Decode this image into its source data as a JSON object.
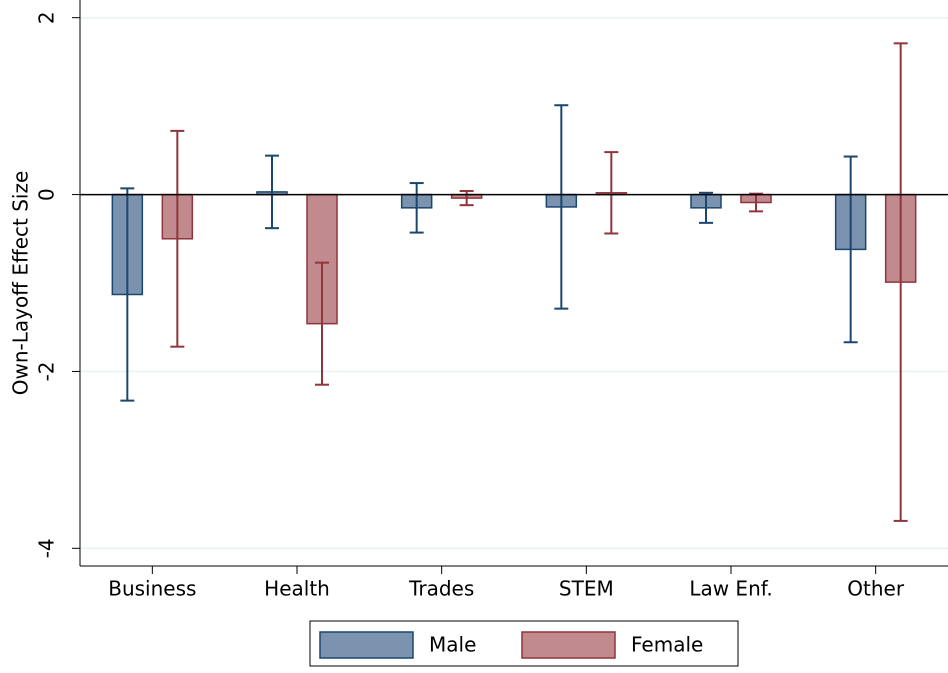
{
  "chart_data": {
    "type": "bar",
    "y_label": "Own-Layoff Effect Size",
    "categories": [
      "Business",
      "Health",
      "Trades",
      "STEM",
      "Law Enf.",
      "Other"
    ],
    "series": [
      {
        "name": "Male",
        "color": "#1a476f",
        "fill": "#7b93ae",
        "values": [
          -1.13,
          0.03,
          -0.15,
          -0.14,
          -0.15,
          -0.62
        ],
        "errors": [
          1.2,
          0.41,
          0.28,
          1.15,
          0.17,
          1.05
        ]
      },
      {
        "name": "Female",
        "color": "#90353b",
        "fill": "#c08a8e",
        "values": [
          -0.5,
          -1.46,
          -0.04,
          0.02,
          -0.09,
          -0.99
        ],
        "errors": [
          1.22,
          0.69,
          0.08,
          0.46,
          0.1,
          2.7
        ]
      }
    ],
    "ylim": [
      -4.2,
      2.2
    ],
    "yticks": [
      -4,
      -2,
      0,
      2
    ],
    "grid": true,
    "reference_line": 0,
    "legend": "bottom"
  }
}
